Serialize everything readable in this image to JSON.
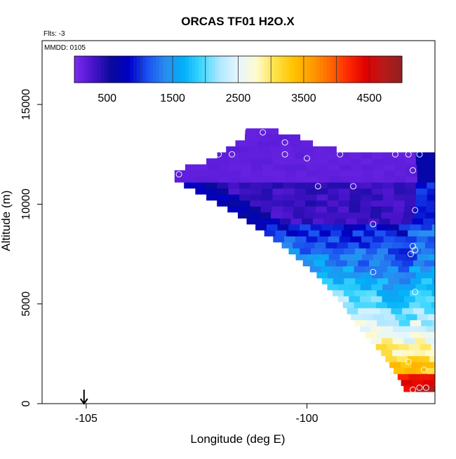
{
  "chart_data": {
    "type": "heatmap",
    "title": "ORCAS TF01 H2O.X",
    "subtitle": "Flts: -3",
    "annotation": "MMDD: 0105",
    "xlabel": "Longitude (deg E)",
    "ylabel": "Altitude (m)",
    "xlim": [
      -106.0,
      -97.1
    ],
    "ylim": [
      0,
      18200
    ],
    "xticks": [
      -105,
      -100
    ],
    "xtick_labels": [
      "-105",
      "-100"
    ],
    "yticks": [
      0,
      5000,
      10000,
      15000
    ],
    "ytick_labels": [
      "0",
      "5000",
      "10000",
      "15000"
    ],
    "grid": false,
    "legend": "top-inset",
    "colorbar": {
      "range": [
        0,
        5000
      ],
      "ticks": [
        500,
        1500,
        2500,
        3500,
        4500
      ],
      "tick_labels": [
        "500",
        "1500",
        "2500",
        "3500",
        "4500"
      ],
      "colors": [
        "#7b2cf0",
        "#4a14cc",
        "#0a0a9a",
        "#0000c8",
        "#1a4ff0",
        "#2a8cf0",
        "#00b0f8",
        "#40d8ff",
        "#b0e8ff",
        "#e6f6ff",
        "#fffbd0",
        "#ffe24a",
        "#ffc400",
        "#ff9e00",
        "#ff6a00",
        "#ff2a00",
        "#e00000",
        "#b81a1a",
        "#902020"
      ]
    },
    "cell_size": {
      "dlon": 0.25,
      "dalt": 300
    },
    "boundary_lon_at_alt": [
      {
        "alt": 700,
        "lon_min": -97.8
      },
      {
        "alt": 1200,
        "lon_min": -97.9
      },
      {
        "alt": 2500,
        "lon_min": -98.3
      },
      {
        "alt": 4000,
        "lon_min": -98.9
      },
      {
        "alt": 5000,
        "lon_min": -99.2
      },
      {
        "alt": 6500,
        "lon_min": -99.8
      },
      {
        "alt": 8000,
        "lon_min": -100.6
      },
      {
        "alt": 9500,
        "lon_min": -101.6
      },
      {
        "alt": 10500,
        "lon_min": -102.4
      },
      {
        "alt": 11200,
        "lon_min": -103.0
      },
      {
        "alt": 11700,
        "lon_min": -103.0
      },
      {
        "alt": 12200,
        "lon_min": -102.2
      },
      {
        "alt": 12800,
        "lon_min": -101.8
      },
      {
        "alt": 13500,
        "lon_min": -101.3
      },
      {
        "alt": 13800,
        "lon_min": -101.5
      }
    ],
    "top_boundary": [
      {
        "lon": -103.0,
        "alt": 11700
      },
      {
        "lon": -102.2,
        "alt": 12800
      },
      {
        "lon": -101.5,
        "alt": 13800
      },
      {
        "lon": -100.5,
        "alt": 13600
      },
      {
        "lon": -99.8,
        "alt": 13000
      },
      {
        "lon": -99.0,
        "alt": 12600
      },
      {
        "lon": -97.1,
        "alt": 12600
      }
    ],
    "measurements": [
      {
        "lon": -102.9,
        "alt": 11500
      },
      {
        "lon": -102.0,
        "alt": 12500
      },
      {
        "lon": -101.7,
        "alt": 12500
      },
      {
        "lon": -101.45,
        "alt": 13800
      },
      {
        "lon": -101.0,
        "alt": 13600
      },
      {
        "lon": -100.5,
        "alt": 13100
      },
      {
        "lon": -100.5,
        "alt": 12500
      },
      {
        "lon": -100.0,
        "alt": 12300
      },
      {
        "lon": -99.75,
        "alt": 10900
      },
      {
        "lon": -99.25,
        "alt": 12500
      },
      {
        "lon": -98.95,
        "alt": 10900
      },
      {
        "lon": -98.5,
        "alt": 9000
      },
      {
        "lon": -98.0,
        "alt": 12500
      },
      {
        "lon": -97.7,
        "alt": 12500
      },
      {
        "lon": -97.45,
        "alt": 12500
      },
      {
        "lon": -97.6,
        "alt": 11700
      },
      {
        "lon": -97.55,
        "alt": 9700
      },
      {
        "lon": -97.6,
        "alt": 7900
      },
      {
        "lon": -97.55,
        "alt": 7700
      },
      {
        "lon": -97.65,
        "alt": 7500
      },
      {
        "lon": -98.5,
        "alt": 6600
      },
      {
        "lon": -97.55,
        "alt": 5600
      },
      {
        "lon": -97.7,
        "alt": 2100
      },
      {
        "lon": -97.35,
        "alt": 1700
      },
      {
        "lon": -97.6,
        "alt": 700
      },
      {
        "lon": -97.45,
        "alt": 800
      },
      {
        "lon": -97.3,
        "alt": 800
      }
    ],
    "arrow": {
      "lon": -105.05,
      "alt_top": 700,
      "alt_bottom": 0
    }
  }
}
